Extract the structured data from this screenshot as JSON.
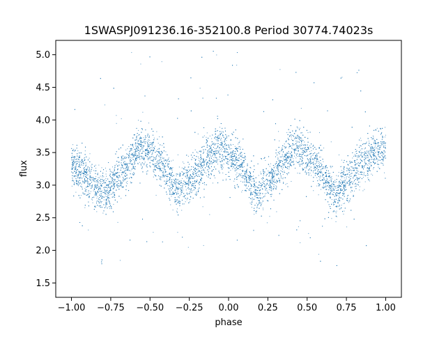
{
  "chart_data": {
    "type": "scatter",
    "title": "1SWASPJ091236.16-352100.8 Period 30774.74023s",
    "xlabel": "phase",
    "ylabel": "flux",
    "xlim": [
      -1.1,
      1.1
    ],
    "ylim": [
      1.28,
      5.22
    ],
    "x_ticks": [
      -1.0,
      -0.75,
      -0.5,
      -0.25,
      0.0,
      0.25,
      0.5,
      0.75,
      1.0
    ],
    "x_tick_labels": [
      "−1.00",
      "−0.75",
      "−0.50",
      "−0.25",
      "0.00",
      "0.25",
      "0.50",
      "0.75",
      "1.00"
    ],
    "y_ticks": [
      1.5,
      2.0,
      2.5,
      3.0,
      3.5,
      4.0,
      4.5,
      5.0
    ],
    "y_tick_labels": [
      "1.5",
      "2.0",
      "2.5",
      "3.0",
      "3.5",
      "4.0",
      "4.5",
      "5.0"
    ],
    "grid": false,
    "legend": "none",
    "point_color": "#1f77b4",
    "x_range": [
      -1.0,
      1.0
    ],
    "trend": {
      "x": [
        -1.0,
        -0.92,
        -0.8,
        -0.68,
        -0.56,
        -0.44,
        -0.32,
        -0.2,
        -0.06,
        0.06,
        0.18,
        0.3,
        0.43,
        0.55,
        0.68,
        0.8,
        0.92,
        1.0
      ],
      "y": [
        3.3,
        3.15,
        2.85,
        3.2,
        3.6,
        3.35,
        2.9,
        3.2,
        3.6,
        3.35,
        2.85,
        3.2,
        3.6,
        3.35,
        2.85,
        3.2,
        3.5,
        3.55
      ]
    }
  }
}
